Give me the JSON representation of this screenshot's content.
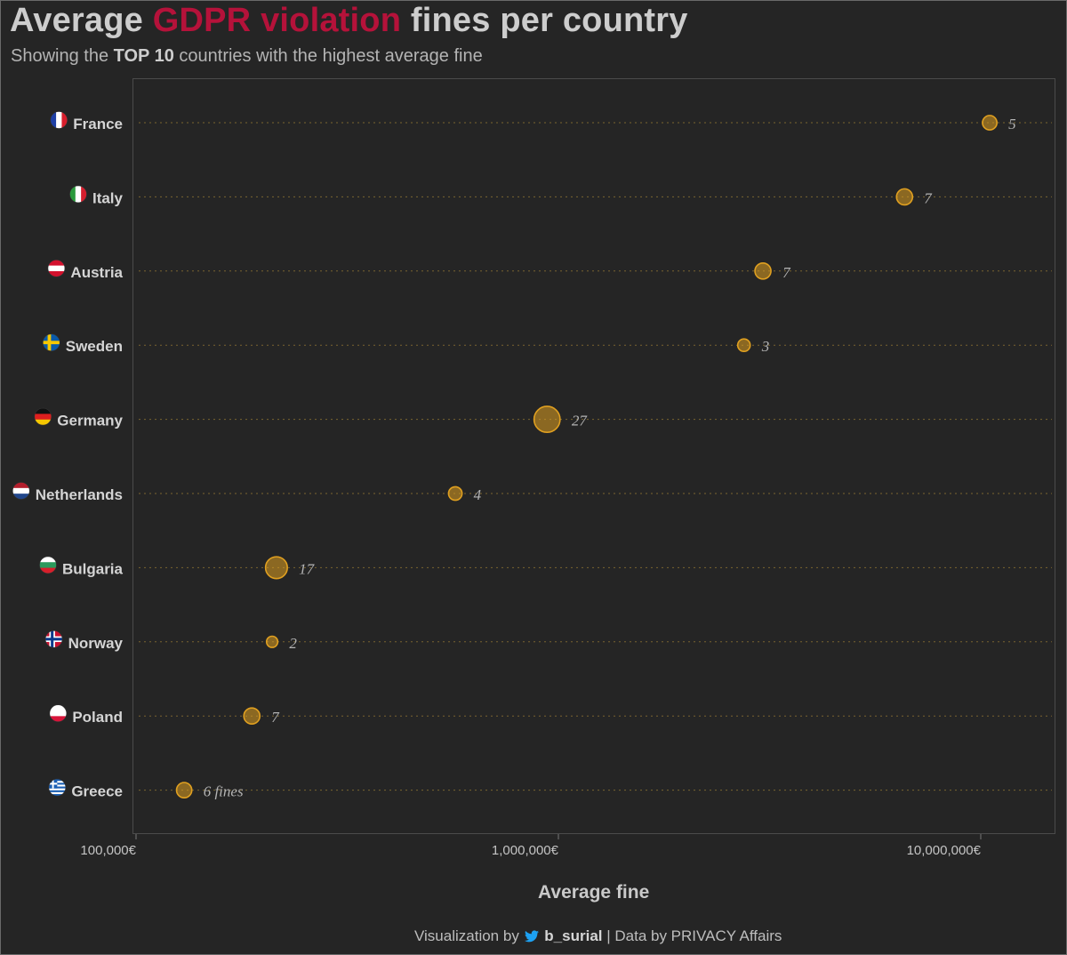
{
  "title": {
    "prefix": "Average ",
    "highlight": "GDPR violation",
    "suffix": " fines per country"
  },
  "subtitle": {
    "prefix": "Showing the ",
    "bold": "TOP 10",
    "suffix": " countries with the highest average fine"
  },
  "caption": {
    "prefix": "Visualization by",
    "icon": "twitter-bird-icon",
    "handle": "b_surial",
    "suffix": "| Data by PRIVACY Affairs"
  },
  "colors": {
    "background": "#252525",
    "highlight": "#b5123a",
    "point": "#e0a020",
    "twitter": "#1da1f2"
  },
  "chart_data": {
    "type": "scatter",
    "title": "Average GDPR violation fines per country",
    "subtitle": "Showing the TOP 10 countries with the highest average fine",
    "xlabel": "Average fine",
    "ylabel": "",
    "xscale": "log10",
    "xlim": [
      90000,
      15000000
    ],
    "xticks": [
      100000,
      1000000,
      10000000
    ],
    "xtick_labels": [
      "100,000€",
      "1,000,000€",
      "10,000,000€"
    ],
    "grid": "horizontal dotted lines per country",
    "point_size_encodes": "number of fines",
    "categories": [
      "France",
      "Italy",
      "Austria",
      "Sweden",
      "Germany",
      "Netherlands",
      "Bulgaria",
      "Norway",
      "Poland",
      "Greece"
    ],
    "flag_icons": [
      "france-flag-icon",
      "italy-flag-icon",
      "austria-flag-icon",
      "sweden-flag-icon",
      "germany-flag-icon",
      "netherlands-flag-icon",
      "bulgaria-flag-icon",
      "norway-flag-icon",
      "poland-flag-icon",
      "greece-flag-icon"
    ],
    "avg_fine": [
      10500000,
      6600000,
      3050000,
      2750000,
      940000,
      570000,
      215000,
      210000,
      188000,
      130000
    ],
    "num_fines": [
      5,
      7,
      7,
      3,
      27,
      4,
      17,
      2,
      7,
      6
    ],
    "point_labels": [
      "5",
      "7",
      "7",
      "3",
      "27",
      "4",
      "17",
      "2",
      "7",
      "6 fines"
    ]
  }
}
